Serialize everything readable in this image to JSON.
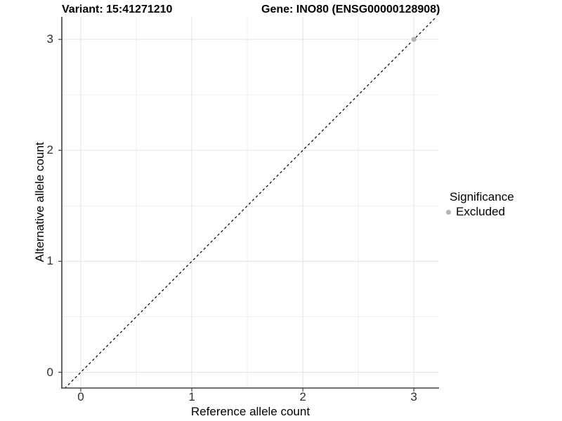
{
  "chart_data": {
    "type": "scatter",
    "title_left": "Variant: 15:41271210",
    "title_right": "Gene: INO80 (ENSG00000128908)",
    "x": {
      "label": "Reference allele count",
      "min": -0.171,
      "max": 3.227,
      "ticks": [
        0,
        1,
        2,
        3
      ],
      "tick_labels": [
        "0",
        "1",
        "2",
        "3"
      ],
      "minor_ticks": [
        0.5,
        1.5,
        2.5
      ]
    },
    "y": {
      "label": "Alternative allele count",
      "min": -0.142,
      "max": 3.203,
      "ticks": [
        0,
        1,
        2,
        3
      ],
      "tick_labels": [
        "0",
        "1",
        "2",
        "3"
      ],
      "minor_ticks": [
        0.5,
        1.5,
        2.5
      ]
    },
    "points": [
      {
        "x": 3,
        "y": 3,
        "series": "Excluded"
      }
    ],
    "reference_line": {
      "type": "abline",
      "slope": 1,
      "intercept": 0,
      "style": "dashed"
    },
    "legend": {
      "title": "Significance",
      "position": "right",
      "items": [
        {
          "label": "Excluded",
          "color": "#b4b4b4"
        }
      ]
    },
    "grid": true,
    "colors": {
      "background": "#ffffff",
      "grid_major": "#e4e4e4",
      "grid_minor": "#f0f0f0",
      "axis_line": "#404040",
      "tick_mark": "#404040",
      "tick_text": "#303030",
      "reference_line": "#000000"
    }
  }
}
